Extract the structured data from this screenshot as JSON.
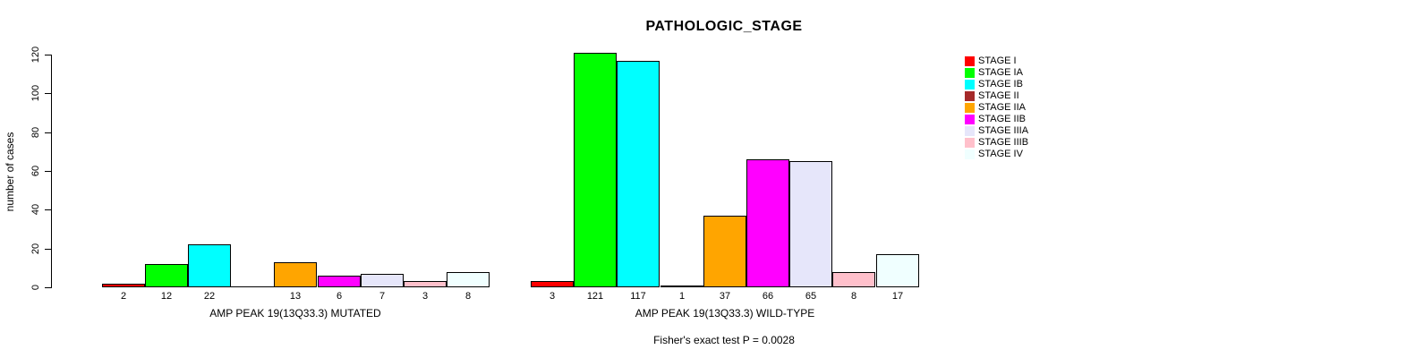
{
  "chart_data": {
    "type": "bar",
    "title": "PATHOLOGIC_STAGE",
    "ylabel": "number of cases",
    "ylim": [
      0,
      120
    ],
    "yticks": [
      0,
      20,
      40,
      60,
      80,
      100,
      120
    ],
    "grid": false,
    "legend_position": "right",
    "categories": [
      "STAGE I",
      "STAGE IA",
      "STAGE IB",
      "STAGE II",
      "STAGE IIA",
      "STAGE IIB",
      "STAGE IIIA",
      "STAGE IIIB",
      "STAGE IV"
    ],
    "colors": [
      "#FF0000",
      "#00FF00",
      "#00FFFF",
      "#A52A2A",
      "#FFA500",
      "#FF00FF",
      "#E6E6FA",
      "#FFC0CB",
      "#F0FFFF"
    ],
    "series": [
      {
        "name": "AMP PEAK 19(13Q33.3) MUTATED",
        "values": [
          2,
          12,
          22,
          0,
          13,
          6,
          7,
          3,
          8
        ]
      },
      {
        "name": "AMP PEAK 19(13Q33.3) WILD-TYPE",
        "values": [
          3,
          121,
          117,
          1,
          37,
          66,
          65,
          8,
          17
        ]
      }
    ],
    "bar_value_labels": "shown under each bar; hidden when value is 0",
    "footer": "Fisher's exact test P = 0.0028"
  }
}
